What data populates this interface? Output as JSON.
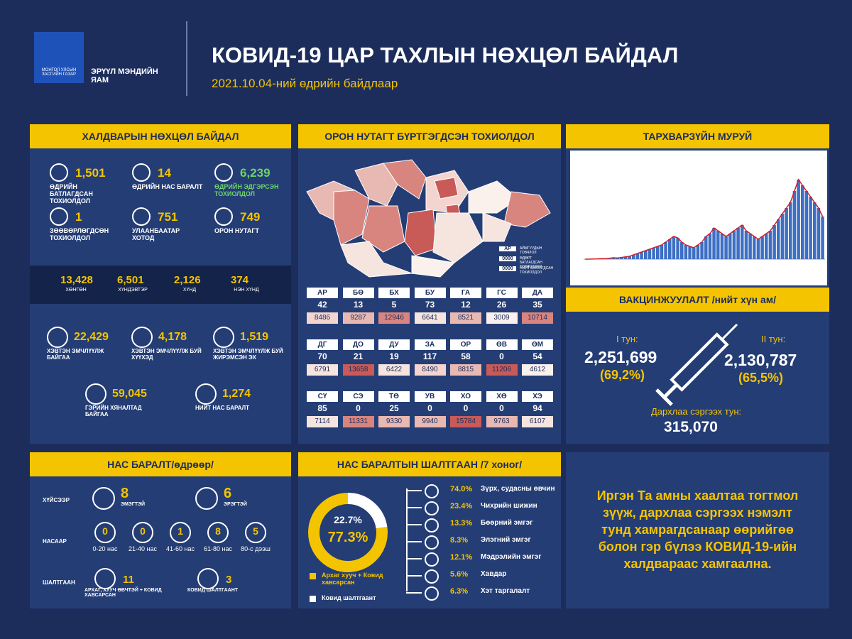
{
  "header": {
    "gov_label": "МОНГОЛ УЛСЫН ЗАСГИЙН ГАЗАР",
    "ministry": "ЭРҮҮЛ МЭНДИЙН ЯАМ",
    "title": "КОВИД-19 ЦАР ТАХЛЫН НӨХЦӨЛ БАЙДАЛ",
    "subtitle": "2021.10.04-ний өдрийн байдлаар"
  },
  "infection": {
    "title": "ХАЛДВАРЫН НӨХЦӨЛ БАЙДАЛ",
    "stats": [
      {
        "value": "1,501",
        "label": "ӨДРИЙН БАТЛАГДСАН ТОХИОЛДОЛ",
        "color": "#f5c400"
      },
      {
        "value": "14",
        "label": "ӨДРИЙН НАС БАРАЛТ",
        "color": "#f5c400"
      },
      {
        "value": "6,239",
        "label": "ӨДРИЙН ЭДГЭРСЭН ТОХИОЛДОЛ",
        "color": "#6fd36a"
      },
      {
        "value": "1",
        "label": "ЗӨӨВӨРЛӨГДСӨН ТОХИОЛДОЛ",
        "color": "#f5c400"
      },
      {
        "value": "751",
        "label": "УЛААНБААТАР ХОТОД",
        "color": "#f5c400"
      },
      {
        "value": "749",
        "label": "ОРОН НУТАГТ",
        "color": "#f5c400"
      }
    ],
    "severity": [
      {
        "value": "13,428",
        "label": "ХӨНГӨН"
      },
      {
        "value": "6,501",
        "label": "ХҮНДЭВТЭР"
      },
      {
        "value": "2,126",
        "label": "ХҮНД"
      },
      {
        "value": "374",
        "label": "НЭН ХҮНД"
      }
    ],
    "care": [
      {
        "value": "22,429",
        "label": "ХЭВТЭН ЭМЧЛҮҮЛЖ БАЙГАА"
      },
      {
        "value": "4,178",
        "label": "ХЭВТЭН ЭМЧЛҮҮЛЖ БУЙ ХҮҮХЭД"
      },
      {
        "value": "1,519",
        "label": "ХЭВТЭН ЭМЧЛҮҮЛЖ БУЙ ЖИРЭМСЭН ЭХ"
      },
      {
        "value": "59,045",
        "label": "ГЭРИЙН ХЯНАЛТАД БАЙГАА"
      },
      {
        "value": "1,274",
        "label": "НИЙТ НАС БАРАЛТ"
      }
    ]
  },
  "regions": {
    "title": "ОРОН НУТАГТ БҮРТГЭГДСЭН ТОХИОЛДОЛ",
    "legend": [
      {
        "box": "АР",
        "text": "АЙМГУУДЫН ТОВЧЛОЛ"
      },
      {
        "box": "0000",
        "text": "ӨДӨРТ БАТЛАГДСАН ТОХИОЛДОЛ"
      },
      {
        "box": "0000",
        "text": "НИЙТ БАТЛАГДСАН ТОХИОЛДОЛ"
      }
    ],
    "provinces": [
      [
        "АР",
        "42",
        "8486",
        "#f3d4cf"
      ],
      [
        "БӨ",
        "13",
        "9287",
        "#e8b9b3"
      ],
      [
        "БХ",
        "5",
        "12946",
        "#d9857f"
      ],
      [
        "БУ",
        "73",
        "6641",
        "#f6e4df"
      ],
      [
        "ГА",
        "12",
        "8521",
        "#e8b9b3"
      ],
      [
        "ГС",
        "26",
        "3009",
        "#faf0ec"
      ],
      [
        "ДА",
        "35",
        "10714",
        "#d9857f"
      ],
      [
        "ДГ",
        "70",
        "6791",
        "#f6e4df"
      ],
      [
        "ДО",
        "21",
        "13658",
        "#c85a58"
      ],
      [
        "ДУ",
        "19",
        "6422",
        "#f6e4df"
      ],
      [
        "ЗА",
        "117",
        "8490",
        "#f3d4cf"
      ],
      [
        "ОР",
        "58",
        "8815",
        "#e8b9b3"
      ],
      [
        "ӨВ",
        "0",
        "11206",
        "#c85a58"
      ],
      [
        "ӨМ",
        "54",
        "4612",
        "#faf0ec"
      ],
      [
        "СҮ",
        "85",
        "7114",
        "#f6e4df"
      ],
      [
        "СЭ",
        "0",
        "11331",
        "#d9857f"
      ],
      [
        "ТӨ",
        "25",
        "9330",
        "#e8b9b3"
      ],
      [
        "УВ",
        "0",
        "9940",
        "#e8b9b3"
      ],
      [
        "ХО",
        "0",
        "15784",
        "#c85a58"
      ],
      [
        "ХӨ",
        "0",
        "9763",
        "#e8b9b3"
      ],
      [
        "ХЭ",
        "94",
        "6107",
        "#f6e4df"
      ]
    ]
  },
  "epi_curve": {
    "title": "ТАРХВАРЗҮЙН МУРУЙ",
    "ylim": [
      0,
      3500
    ],
    "bar_color": "#3d6fc4",
    "line_color": "#d0202a",
    "values": [
      0,
      0,
      5,
      10,
      20,
      15,
      30,
      50,
      40,
      60,
      80,
      100,
      150,
      200,
      250,
      300,
      350,
      400,
      450,
      500,
      600,
      700,
      800,
      750,
      600,
      500,
      450,
      400,
      500,
      600,
      800,
      900,
      1100,
      1000,
      900,
      800,
      900,
      1000,
      1100,
      1200,
      1000,
      900,
      800,
      700,
      800,
      900,
      1000,
      1200,
      1400,
      1600,
      1800,
      2000,
      2400,
      2800,
      2600,
      2400,
      2200,
      2000,
      1800,
      1500
    ]
  },
  "vaccination": {
    "title": "ВАКЦИНЖУУЛАЛТ /нийт хүн ам/",
    "dose1": {
      "label": "I тун:",
      "value": "2,251,699",
      "pct": "(69,2%)"
    },
    "dose2": {
      "label": "II тун:",
      "value": "2,130,787",
      "pct": "(65,5%)"
    },
    "booster": {
      "label": "Дархлаа сэргээх тун:",
      "value": "315,070"
    }
  },
  "deaths": {
    "title": "НАС БАРАЛТ/өдрөөр/",
    "row_labels": [
      "ХҮЙСЭЭР",
      "НАСААР",
      "ШАЛТГААН"
    ],
    "sex": [
      {
        "value": "8",
        "label": "ЭМЭГТЭЙ"
      },
      {
        "value": "6",
        "label": "ЭРЭГТЭЙ"
      }
    ],
    "age": [
      {
        "value": "0",
        "label": "0-20 нас"
      },
      {
        "value": "0",
        "label": "21-40 нас"
      },
      {
        "value": "1",
        "label": "41-60 нас"
      },
      {
        "value": "8",
        "label": "61-80 нас"
      },
      {
        "value": "5",
        "label": "80-с дээш"
      }
    ],
    "cause": [
      {
        "value": "11",
        "label": "АРХАГ, ХУУЧ ӨВЧТЭЙ + КОВИД ХАВСАРСАН"
      },
      {
        "value": "3",
        "label": "КОВИД ШАЛТГААНТ"
      }
    ]
  },
  "causes": {
    "title": "НАС БАРАЛТЫН ШАЛТГААН /7 хоног/",
    "donut": [
      {
        "value": 22.7,
        "label": "22.7%",
        "color": "#ffffff"
      },
      {
        "value": 77.3,
        "label": "77.3%",
        "color": "#f5c400"
      }
    ],
    "legend": [
      {
        "text": "Архаг хууч + Ковид хавсарсан",
        "color": "#f5c400"
      },
      {
        "text": "Ковид шалтгаант",
        "color": "#ffffff"
      }
    ],
    "conditions": [
      {
        "pct": "74.0%",
        "name": "Зүрх, судасны өвчин"
      },
      {
        "pct": "23.4%",
        "name": "Чихрийн шижин"
      },
      {
        "pct": "13.3%",
        "name": "Бөөрний эмгэг"
      },
      {
        "pct": "8.3%",
        "name": "Элэгний эмгэг"
      },
      {
        "pct": "12.1%",
        "name": "Мэдрэлийн эмгэг"
      },
      {
        "pct": "5.6%",
        "name": "Хавдар"
      },
      {
        "pct": "6.3%",
        "name": "Хэт таргалалт"
      }
    ]
  },
  "message": {
    "lines": [
      "Иргэн Та амны хаалтаа тогтмол",
      "зүүж, дархлаа сэргээх нэмэлт",
      "тунд хамрагдсанаар өөрийгөө",
      "болон гэр бүлээ КОВИД-19-ийн",
      "халдвараас хамгаална."
    ]
  }
}
